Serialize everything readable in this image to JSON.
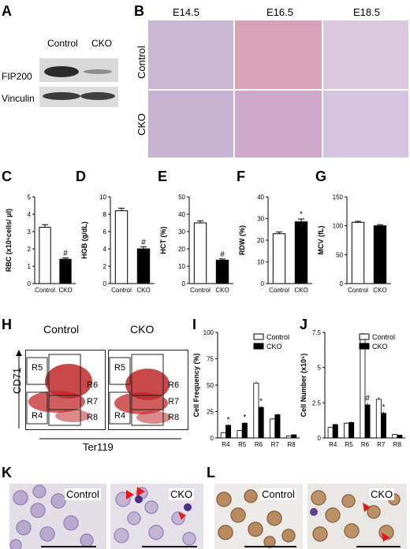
{
  "panel_letters": [
    "A",
    "B",
    "C",
    "D",
    "E",
    "F",
    "G",
    "H",
    "I",
    "J",
    "K",
    "L"
  ],
  "panelA": {
    "columns": [
      "Control",
      "CKO"
    ],
    "rows": [
      "FIP200",
      "Vinculin"
    ]
  },
  "panelB": {
    "timepoints": [
      "E14.5",
      "E16.5",
      "E18.5"
    ],
    "rows": [
      "Control",
      "CKO"
    ]
  },
  "bar_groups": [
    "Control",
    "CKO"
  ],
  "flow": {
    "titles": [
      "Control",
      "CKO"
    ],
    "ylabel": "CD71",
    "xlabel": "Ter119",
    "gates": [
      "R5",
      "R6",
      "R7",
      "R4",
      "R8"
    ]
  },
  "panelK": {
    "labels": [
      "Control",
      "CKO"
    ]
  },
  "panelL": {
    "labels": [
      "Control",
      "CKO"
    ]
  },
  "colors": {
    "bar_control": "#ffffff",
    "bar_cko": "#000000",
    "dot_red": "#c0282a",
    "arrow_red": "#e01b1b"
  },
  "chart_data": [
    {
      "id": "C",
      "type": "bar",
      "ylabel": "RBC (x10⁶cells/ μl)",
      "categories": [
        "Control",
        "CKO"
      ],
      "values": [
        3.25,
        1.4
      ],
      "errors": [
        0.15,
        0.08
      ],
      "ylim": [
        0,
        5
      ],
      "yticks": [
        0,
        1,
        2,
        3,
        4,
        5
      ],
      "marks": [
        "",
        "#"
      ]
    },
    {
      "id": "D",
      "type": "bar",
      "ylabel": "HGB (g/dL)",
      "categories": [
        "Control",
        "CKO"
      ],
      "values": [
        8.4,
        4.0
      ],
      "errors": [
        0.3,
        0.25
      ],
      "ylim": [
        0,
        10
      ],
      "yticks": [
        0,
        2,
        4,
        6,
        8,
        10
      ],
      "marks": [
        "",
        "#"
      ]
    },
    {
      "id": "E",
      "type": "bar",
      "ylabel": "HCT (%)",
      "categories": [
        "Control",
        "CKO"
      ],
      "values": [
        35,
        13.5
      ],
      "errors": [
        1.2,
        0.7
      ],
      "ylim": [
        0,
        50
      ],
      "yticks": [
        0,
        10,
        20,
        30,
        40,
        50
      ],
      "marks": [
        "",
        "#"
      ]
    },
    {
      "id": "F",
      "type": "bar",
      "ylabel": "RDW (%)",
      "categories": [
        "Control",
        "CKO"
      ],
      "values": [
        23,
        28.5
      ],
      "errors": [
        0.8,
        1.3
      ],
      "ylim": [
        0,
        40
      ],
      "yticks": [
        0,
        10,
        20,
        30,
        40
      ],
      "marks": [
        "",
        "*"
      ]
    },
    {
      "id": "G",
      "type": "bar",
      "ylabel": "MCV (fL)",
      "categories": [
        "Control",
        "CKO"
      ],
      "values": [
        106,
        100
      ],
      "errors": [
        1.8,
        2.0
      ],
      "ylim": [
        0,
        150
      ],
      "yticks": [
        0,
        50,
        100,
        150
      ],
      "marks": [
        "",
        ""
      ]
    },
    {
      "id": "I",
      "type": "bar",
      "ylabel": "Cell Frequency (%)",
      "categories": [
        "R4",
        "R5",
        "R6",
        "R7",
        "R8"
      ],
      "ylim": [
        0,
        100
      ],
      "yticks": [
        0,
        25,
        50,
        75,
        100
      ],
      "series": [
        {
          "name": "Control",
          "values": [
            5,
            7,
            52,
            18,
            2
          ],
          "errors": [
            0.6,
            0.6,
            1.5,
            0.8,
            0.3
          ]
        },
        {
          "name": "CKO",
          "values": [
            12,
            14,
            29,
            22,
            3
          ],
          "errors": [
            0.8,
            0.8,
            1.2,
            0.8,
            0.3
          ]
        }
      ],
      "marks": [
        "*",
        "*",
        "*",
        "",
        ""
      ]
    },
    {
      "id": "J",
      "type": "bar",
      "ylabel": "Cell Number (x10⁵)",
      "categories": [
        "R4",
        "R5",
        "R6",
        "R7",
        "R8"
      ],
      "ylim": [
        0,
        7.5
      ],
      "yticks": [
        0,
        2.5,
        5,
        7.5
      ],
      "series": [
        {
          "name": "Control",
          "values": [
            0.75,
            1.05,
            7.2,
            2.75,
            0.25
          ],
          "errors": [
            0.05,
            0.05,
            0.25,
            0.15,
            0.03
          ]
        },
        {
          "name": "CKO",
          "values": [
            0.95,
            1.1,
            2.35,
            1.75,
            0.2
          ],
          "errors": [
            0.05,
            0.05,
            0.15,
            0.1,
            0.03
          ]
        }
      ],
      "marks": [
        "",
        "",
        "#",
        "*",
        ""
      ]
    }
  ]
}
